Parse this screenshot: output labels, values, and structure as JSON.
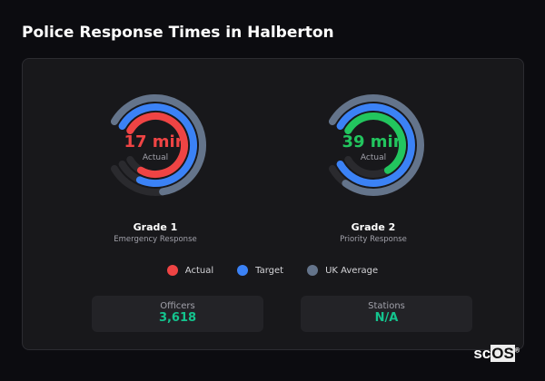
{
  "title": "Police Response Times in Halberton",
  "colors": {
    "actual_grade1": "#ef4444",
    "actual_grade2": "#22c55e",
    "target": "#3b82f6",
    "uk_average": "#64748b",
    "track": "#2a2a2e",
    "stat_value": "#14c48e"
  },
  "gauges": [
    {
      "name": "Grade 1",
      "description": "Emergency Response",
      "value": "17 min",
      "value_label": "Actual",
      "value_color": "#ef4444",
      "fills": {
        "uk_average": 0.77,
        "target": 0.88,
        "actual": 0.9
      }
    },
    {
      "name": "Grade 2",
      "description": "Priority Response",
      "value": "39 min",
      "value_label": "Actual",
      "value_color": "#22c55e",
      "fills": {
        "uk_average": 0.92,
        "target": 1.0,
        "actual": 0.7
      }
    }
  ],
  "legend": [
    {
      "label": "Actual",
      "color": "#ef4444"
    },
    {
      "label": "Target",
      "color": "#3b82f6"
    },
    {
      "label": "UK Average",
      "color": "#64748b"
    }
  ],
  "stats": [
    {
      "label": "Officers",
      "value": "3,618"
    },
    {
      "label": "Stations",
      "value": "N/A"
    }
  ],
  "logo": "scOS"
}
